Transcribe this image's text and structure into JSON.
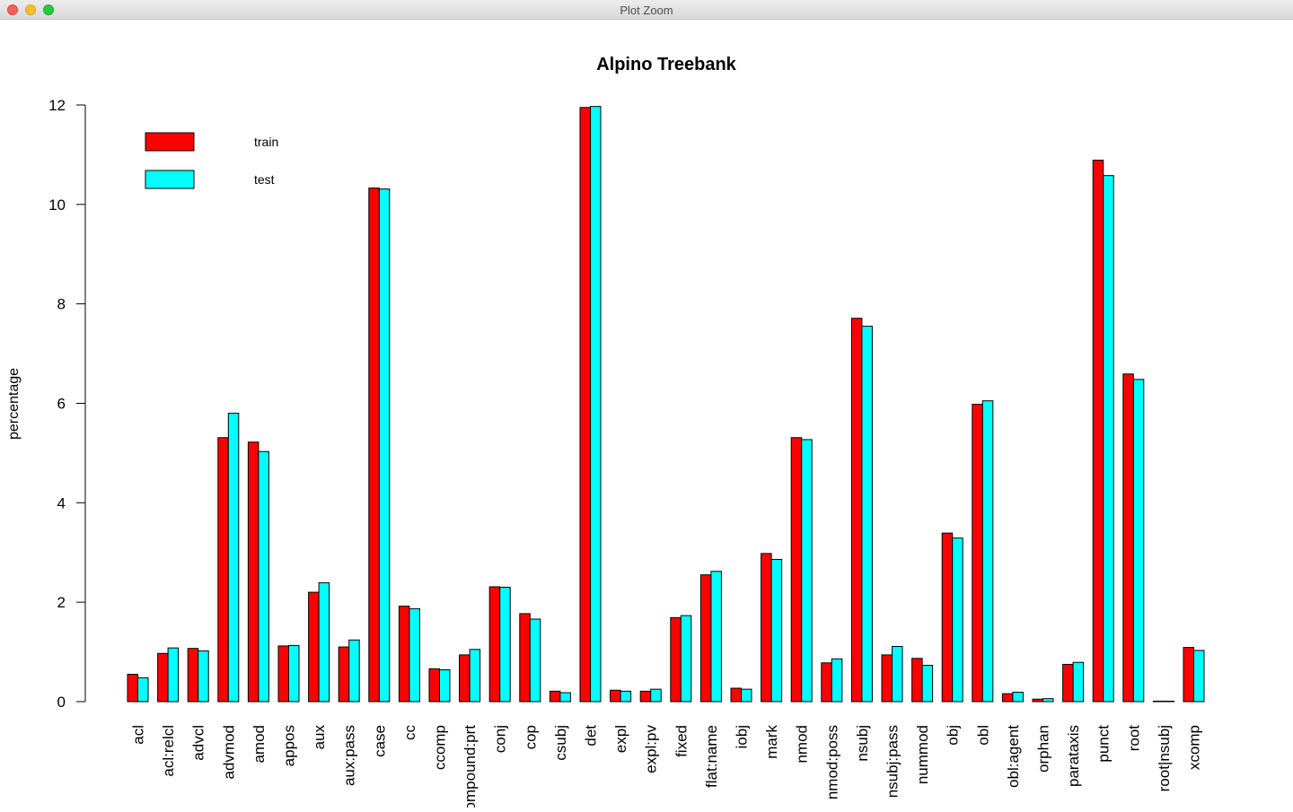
{
  "window": {
    "title": "Plot Zoom"
  },
  "chart_data": {
    "type": "bar",
    "title": "Alpino Treebank",
    "xlabel": "",
    "ylabel": "percentage",
    "ylim": [
      0,
      12
    ],
    "yticks": [
      0,
      2,
      4,
      6,
      8,
      10,
      12
    ],
    "grid": false,
    "legend_position": "top-left",
    "categories": [
      "acl",
      "acl:relcl",
      "advcl",
      "advmod",
      "amod",
      "appos",
      "aux",
      "aux:pass",
      "case",
      "cc",
      "ccomp",
      "compound:prt",
      "conj",
      "cop",
      "csubj",
      "det",
      "expl",
      "expl:pv",
      "fixed",
      "flat:name",
      "iobj",
      "mark",
      "nmod",
      "nmod:poss",
      "nsubj",
      "nsubj:pass",
      "nummod",
      "obj",
      "obl",
      "obl:agent",
      "orphan",
      "parataxis",
      "punct",
      "root",
      "root|nsubj",
      "xcomp"
    ],
    "series": [
      {
        "name": "train",
        "color": "#ff0000",
        "values": [
          0.55,
          0.97,
          1.07,
          5.31,
          5.22,
          1.12,
          2.2,
          1.1,
          10.33,
          1.92,
          0.66,
          0.94,
          2.31,
          1.77,
          0.21,
          11.95,
          0.23,
          0.21,
          1.69,
          2.55,
          0.27,
          2.98,
          5.31,
          0.78,
          7.71,
          0.94,
          0.87,
          3.39,
          5.98,
          0.16,
          0.05,
          0.75,
          10.89,
          6.59,
          0.01,
          1.09
        ]
      },
      {
        "name": "test",
        "color": "#00ffff",
        "values": [
          0.48,
          1.08,
          1.02,
          5.8,
          5.03,
          1.13,
          2.39,
          1.24,
          10.31,
          1.87,
          0.64,
          1.05,
          2.3,
          1.66,
          0.18,
          11.97,
          0.21,
          0.25,
          1.73,
          2.62,
          0.25,
          2.86,
          5.27,
          0.86,
          7.55,
          1.11,
          0.73,
          3.29,
          6.05,
          0.19,
          0.06,
          0.79,
          10.58,
          6.48,
          0.01,
          1.03
        ]
      }
    ]
  }
}
